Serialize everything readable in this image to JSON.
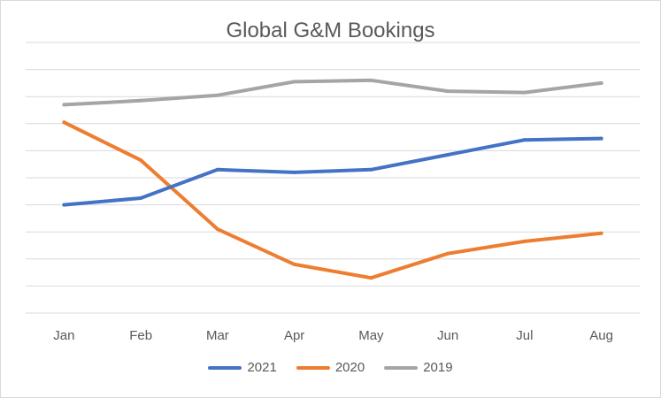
{
  "chart_data": {
    "type": "line",
    "title": "Global G&M Bookings",
    "xlabel": "",
    "ylabel": "",
    "categories": [
      "Jan",
      "Feb",
      "Mar",
      "Apr",
      "May",
      "Jun",
      "Jul",
      "Aug"
    ],
    "ylim": [
      0,
      10
    ],
    "grid": true,
    "y_tick_labels_shown": false,
    "legend_position": "bottom",
    "series": [
      {
        "name": "2021",
        "color": "#4472c4",
        "values": [
          4.0,
          4.25,
          5.3,
          5.2,
          5.3,
          5.85,
          6.4,
          6.45
        ]
      },
      {
        "name": "2020",
        "color": "#ed7d31",
        "values": [
          7.05,
          5.65,
          3.1,
          1.8,
          1.3,
          2.2,
          2.65,
          2.95
        ]
      },
      {
        "name": "2019",
        "color": "#a5a5a5",
        "values": [
          7.7,
          7.85,
          8.05,
          8.55,
          8.6,
          8.2,
          8.15,
          8.5
        ]
      }
    ]
  }
}
